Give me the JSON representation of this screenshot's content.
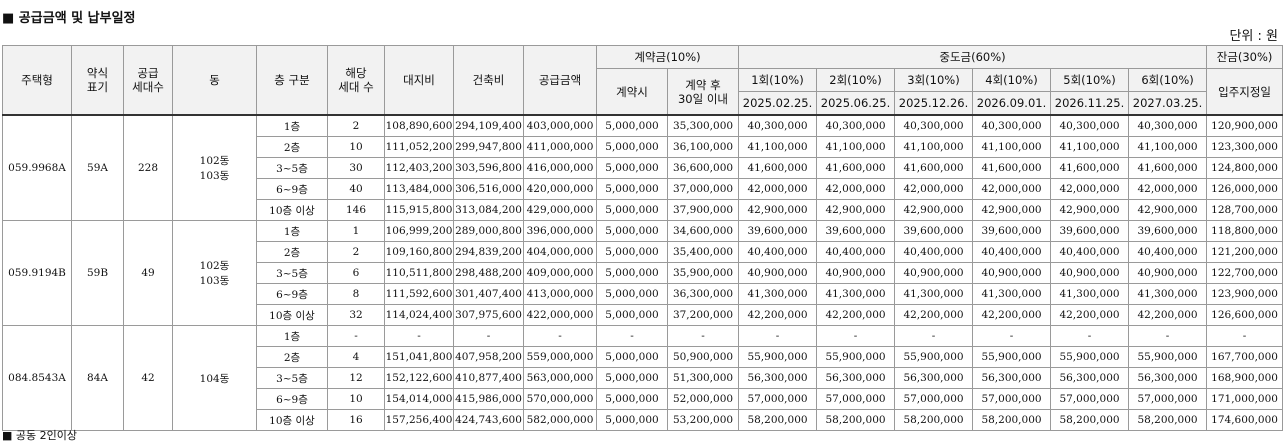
{
  "title": "■ 공급금액 및 납부일정",
  "unit": "단위 : 원",
  "header": {
    "type": "주택형",
    "abbr": "약식\n표기",
    "supply_units": "공급\n세대수",
    "building": "동",
    "floor_group": "층 구분",
    "applicable_units": "해당\n세대 수",
    "land_cost": "대지비",
    "building_cost": "건축비",
    "supply_amount": "공급금액",
    "contract_group": "계약금(10%)",
    "contract_at": "계약시",
    "contract_after": "계약 후\n30일 이내",
    "interim_group": "중도금(60%)",
    "interim": [
      {
        "round": "1회(10%)",
        "date": "2025.02.25."
      },
      {
        "round": "2회(10%)",
        "date": "2025.06.25."
      },
      {
        "round": "3회(10%)",
        "date": "2025.12.26."
      },
      {
        "round": "4회(10%)",
        "date": "2026.09.01."
      },
      {
        "round": "5회(10%)",
        "date": "2026.11.25."
      },
      {
        "round": "6회(10%)",
        "date": "2027.03.25."
      }
    ],
    "balance_group": "잔금(30%)",
    "move_in": "입주지정일"
  },
  "groups": [
    {
      "type": "059.9968A",
      "abbr": "59A",
      "supply_units": "228",
      "building": "102동\n103동",
      "rows": [
        [
          "1층",
          "2",
          "108,890,600",
          "294,109,400",
          "403,000,000",
          "5,000,000",
          "35,300,000",
          "40,300,000",
          "40,300,000",
          "40,300,000",
          "40,300,000",
          "40,300,000",
          "40,300,000",
          "120,900,000"
        ],
        [
          "2층",
          "10",
          "111,052,200",
          "299,947,800",
          "411,000,000",
          "5,000,000",
          "36,100,000",
          "41,100,000",
          "41,100,000",
          "41,100,000",
          "41,100,000",
          "41,100,000",
          "41,100,000",
          "123,300,000"
        ],
        [
          "3~5층",
          "30",
          "112,403,200",
          "303,596,800",
          "416,000,000",
          "5,000,000",
          "36,600,000",
          "41,600,000",
          "41,600,000",
          "41,600,000",
          "41,600,000",
          "41,600,000",
          "41,600,000",
          "124,800,000"
        ],
        [
          "6~9층",
          "40",
          "113,484,000",
          "306,516,000",
          "420,000,000",
          "5,000,000",
          "37,000,000",
          "42,000,000",
          "42,000,000",
          "42,000,000",
          "42,000,000",
          "42,000,000",
          "42,000,000",
          "126,000,000"
        ],
        [
          "10층 이상",
          "146",
          "115,915,800",
          "313,084,200",
          "429,000,000",
          "5,000,000",
          "37,900,000",
          "42,900,000",
          "42,900,000",
          "42,900,000",
          "42,900,000",
          "42,900,000",
          "42,900,000",
          "128,700,000"
        ]
      ]
    },
    {
      "type": "059.9194B",
      "abbr": "59B",
      "supply_units": "49",
      "building": "102동\n103동",
      "rows": [
        [
          "1층",
          "1",
          "106,999,200",
          "289,000,800",
          "396,000,000",
          "5,000,000",
          "34,600,000",
          "39,600,000",
          "39,600,000",
          "39,600,000",
          "39,600,000",
          "39,600,000",
          "39,600,000",
          "118,800,000"
        ],
        [
          "2층",
          "2",
          "109,160,800",
          "294,839,200",
          "404,000,000",
          "5,000,000",
          "35,400,000",
          "40,400,000",
          "40,400,000",
          "40,400,000",
          "40,400,000",
          "40,400,000",
          "40,400,000",
          "121,200,000"
        ],
        [
          "3~5층",
          "6",
          "110,511,800",
          "298,488,200",
          "409,000,000",
          "5,000,000",
          "35,900,000",
          "40,900,000",
          "40,900,000",
          "40,900,000",
          "40,900,000",
          "40,900,000",
          "40,900,000",
          "122,700,000"
        ],
        [
          "6~9층",
          "8",
          "111,592,600",
          "301,407,400",
          "413,000,000",
          "5,000,000",
          "36,300,000",
          "41,300,000",
          "41,300,000",
          "41,300,000",
          "41,300,000",
          "41,300,000",
          "41,300,000",
          "123,900,000"
        ],
        [
          "10층 이상",
          "32",
          "114,024,400",
          "307,975,600",
          "422,000,000",
          "5,000,000",
          "37,200,000",
          "42,200,000",
          "42,200,000",
          "42,200,000",
          "42,200,000",
          "42,200,000",
          "42,200,000",
          "126,600,000"
        ]
      ]
    },
    {
      "type": "084.8543A",
      "abbr": "84A",
      "supply_units": "42",
      "building": "104동",
      "rows": [
        [
          "1층",
          "-",
          "-",
          "-",
          "-",
          "-",
          "-",
          "-",
          "-",
          "-",
          "-",
          "-",
          "-",
          "-"
        ],
        [
          "2층",
          "4",
          "151,041,800",
          "407,958,200",
          "559,000,000",
          "5,000,000",
          "50,900,000",
          "55,900,000",
          "55,900,000",
          "55,900,000",
          "55,900,000",
          "55,900,000",
          "55,900,000",
          "167,700,000"
        ],
        [
          "3~5층",
          "12",
          "152,122,600",
          "410,877,400",
          "563,000,000",
          "5,000,000",
          "51,300,000",
          "56,300,000",
          "56,300,000",
          "56,300,000",
          "56,300,000",
          "56,300,000",
          "56,300,000",
          "168,900,000"
        ],
        [
          "6~9층",
          "10",
          "154,014,000",
          "415,986,000",
          "570,000,000",
          "5,000,000",
          "52,000,000",
          "57,000,000",
          "57,000,000",
          "57,000,000",
          "57,000,000",
          "57,000,000",
          "57,000,000",
          "171,000,000"
        ],
        [
          "10층 이상",
          "16",
          "157,256,400",
          "424,743,600",
          "582,000,000",
          "5,000,000",
          "53,200,000",
          "58,200,000",
          "58,200,000",
          "58,200,000",
          "58,200,000",
          "58,200,000",
          "58,200,000",
          "174,600,000"
        ]
      ]
    }
  ],
  "footnote": "■ 공동 2인이상"
}
